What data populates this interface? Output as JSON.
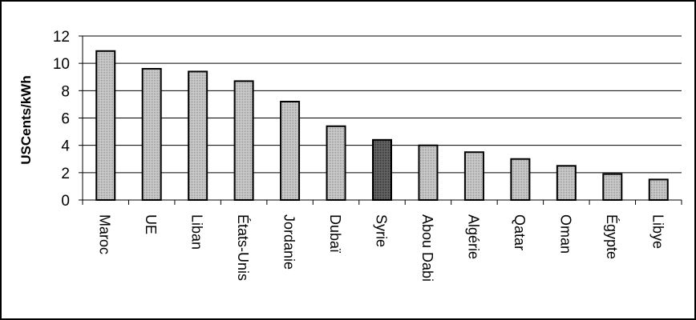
{
  "chart_data": {
    "type": "bar",
    "title": "",
    "xlabel": "",
    "ylabel": "USCents/kWh",
    "ylim": [
      0,
      12
    ],
    "yticks": [
      0,
      2,
      4,
      6,
      8,
      10,
      12
    ],
    "grid": true,
    "categories": [
      "Maroc",
      "UE",
      "Liban",
      "États-Unis",
      "Jordanie",
      "Dubaï",
      "Syrie",
      "Abou Dabi",
      "Algérie",
      "Qatar",
      "Oman",
      "Égypte",
      "Libye"
    ],
    "values": [
      10.9,
      9.6,
      9.4,
      8.7,
      7.2,
      5.4,
      4.4,
      4.0,
      3.5,
      3.0,
      2.5,
      1.9,
      1.5
    ],
    "colors": {
      "default": "#bdbdbd",
      "highlight": "#555555",
      "highlight_category": "Syrie"
    }
  }
}
